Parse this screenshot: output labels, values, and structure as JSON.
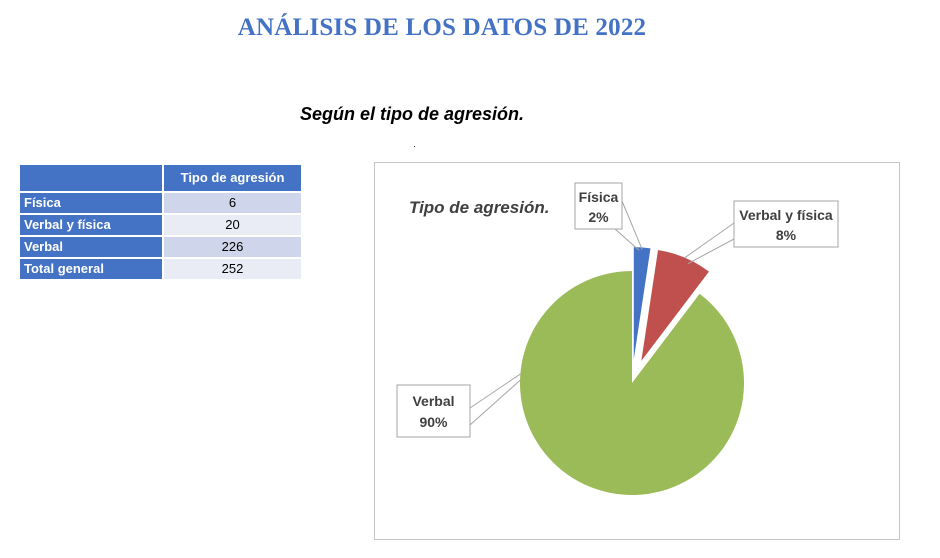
{
  "page": {
    "title": "ANÁLISIS DE LOS DATOS DE 2022",
    "subtitle": "Según el tipo de agresión."
  },
  "table": {
    "header": "Tipo de agresión",
    "rows": [
      {
        "label": "Física",
        "value": "6"
      },
      {
        "label": "Verbal y física",
        "value": "20"
      },
      {
        "label": "Verbal",
        "value": "226"
      },
      {
        "label": "Total general",
        "value": "252"
      }
    ]
  },
  "colors": {
    "accent": "#4472c4",
    "row_shade_a": "#cfd5ea",
    "row_shade_b": "#e9ebf5",
    "fisica": "#4472c4",
    "verbal_y_fisica": "#c0504d",
    "verbal": "#9bbb59"
  },
  "chart_data": {
    "type": "pie",
    "title": "Tipo de agresión.",
    "categories": [
      "Física",
      "Verbal y física",
      "Verbal"
    ],
    "values": [
      6,
      20,
      226
    ],
    "percent_labels": [
      "2%",
      "8%",
      "90%"
    ],
    "colors": [
      "#4472c4",
      "#c0504d",
      "#9bbb59"
    ],
    "exploded": true,
    "legend": "none"
  }
}
